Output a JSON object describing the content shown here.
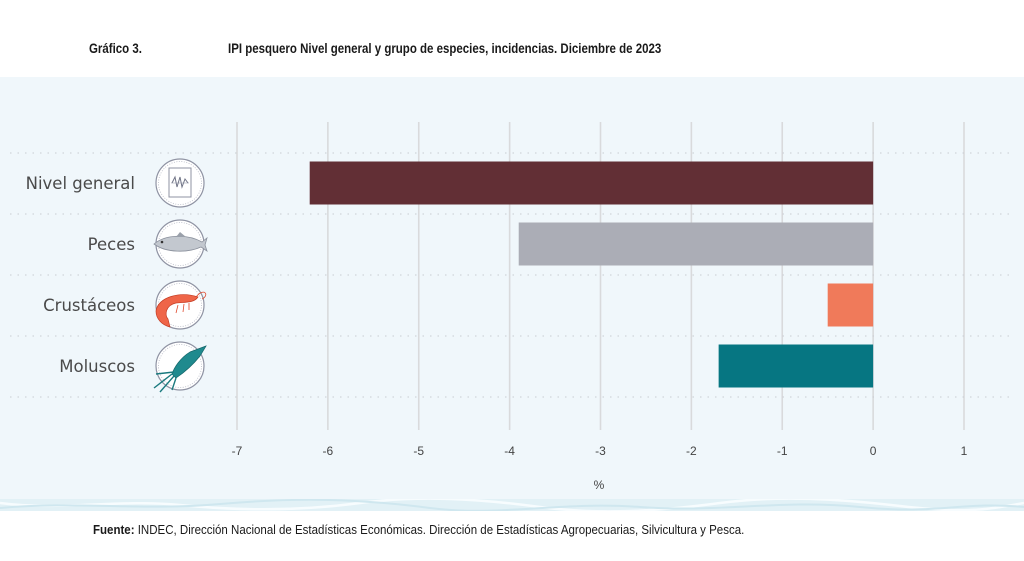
{
  "header": {
    "figure_number": "Gráfico 3.",
    "title": "IPI pesquero Nivel general y grupo de especies, incidencias. Diciembre de 2023"
  },
  "footer": {
    "source_label": "Fuente:",
    "source_text": " INDEC, Dirección Nacional de Estadísticas Económicas. Dirección de Estadísticas Agropecuarias, Silvicultura y Pesca."
  },
  "chart_data": {
    "type": "bar",
    "orientation": "horizontal",
    "title": "IPI pesquero Nivel general y grupo de especies, incidencias. Diciembre de 2023",
    "xlabel": "%",
    "ylabel": "",
    "categories": [
      "Nivel general",
      "Peces",
      "Crustáceos",
      "Moluscos"
    ],
    "values": [
      -6.2,
      -3.9,
      -0.5,
      -1.7
    ],
    "colors": [
      "#622f35",
      "#abadb6",
      "#f07a5a",
      "#067682"
    ],
    "icons": [
      "chart-document-icon",
      "fish-icon",
      "shrimp-icon",
      "squid-icon"
    ],
    "xlim": [
      -7,
      1
    ],
    "xticks": [
      -7,
      -6,
      -5,
      -4,
      -3,
      -2,
      -1,
      0,
      1
    ],
    "xtick_labels": [
      "-7",
      "-6",
      "-5",
      "-4",
      "-3",
      "-2",
      "-1",
      "0",
      "1"
    ],
    "grid": true,
    "legend": "none"
  }
}
